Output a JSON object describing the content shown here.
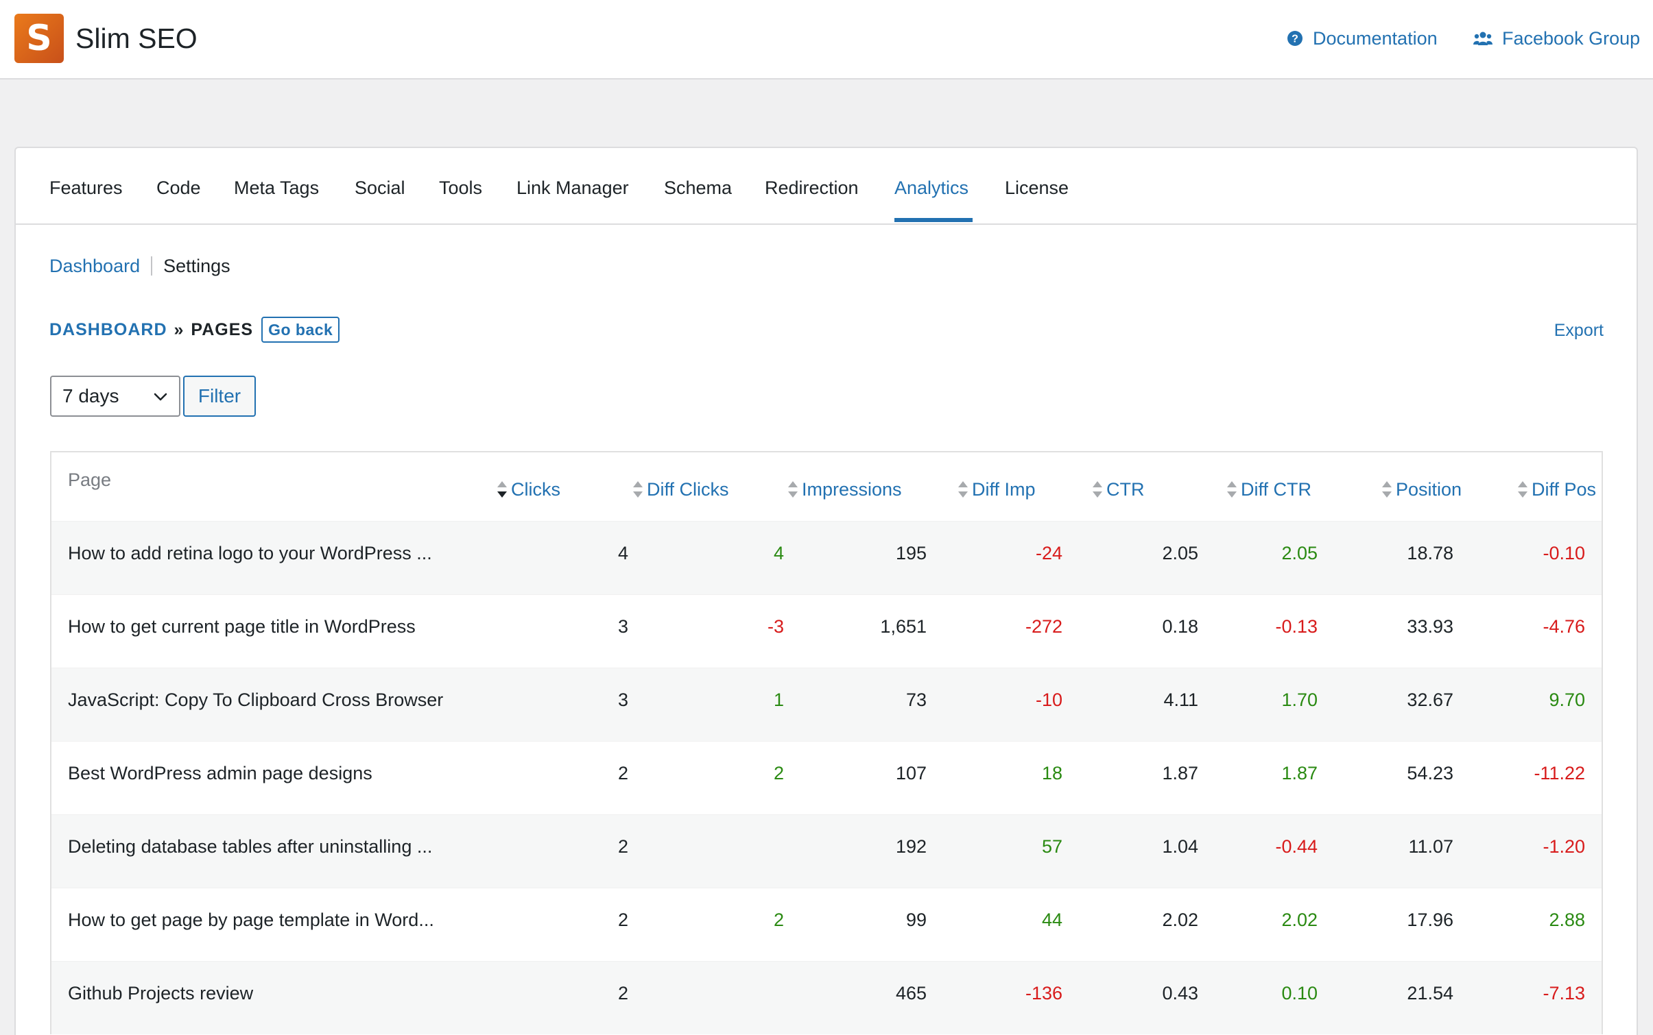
{
  "app": {
    "logo_letter": "S",
    "title": "Slim SEO"
  },
  "top_links": {
    "documentation": "Documentation",
    "facebook_group": "Facebook Group"
  },
  "tabs": [
    "Features",
    "Code",
    "Meta Tags",
    "Social",
    "Tools",
    "Link Manager",
    "Schema",
    "Redirection",
    "Analytics",
    "License"
  ],
  "active_tab": "Analytics",
  "subnav": {
    "dashboard": "Dashboard",
    "settings": "Settings"
  },
  "breadcrumb": {
    "dashboard": "DASHBOARD",
    "separator": "»",
    "current": "PAGES",
    "go_back": "Go back"
  },
  "export_label": "Export",
  "period_select": {
    "value": "7 days"
  },
  "filter_label": "Filter",
  "table": {
    "columns": [
      "Page",
      "Clicks",
      "Diff Clicks",
      "Impressions",
      "Diff Imp",
      "CTR",
      "Diff CTR",
      "Position",
      "Diff Pos"
    ],
    "sorted_column": "Clicks",
    "rows": [
      {
        "page": "How to add retina logo to your WordPress ...",
        "clicks": "4",
        "diff_clicks": "4",
        "impressions": "195",
        "diff_imp": "-24",
        "ctr": "2.05",
        "diff_ctr": "2.05",
        "position": "18.78",
        "diff_pos": "-0.10"
      },
      {
        "page": "How to get current page title in WordPress",
        "clicks": "3",
        "diff_clicks": "-3",
        "impressions": "1,651",
        "diff_imp": "-272",
        "ctr": "0.18",
        "diff_ctr": "-0.13",
        "position": "33.93",
        "diff_pos": "-4.76"
      },
      {
        "page": "JavaScript: Copy To Clipboard Cross Browser",
        "clicks": "3",
        "diff_clicks": "1",
        "impressions": "73",
        "diff_imp": "-10",
        "ctr": "4.11",
        "diff_ctr": "1.70",
        "position": "32.67",
        "diff_pos": "9.70"
      },
      {
        "page": "Best WordPress admin page designs",
        "clicks": "2",
        "diff_clicks": "2",
        "impressions": "107",
        "diff_imp": "18",
        "ctr": "1.87",
        "diff_ctr": "1.87",
        "position": "54.23",
        "diff_pos": "-11.22"
      },
      {
        "page": "Deleting database tables after uninstalling ...",
        "clicks": "2",
        "diff_clicks": "",
        "impressions": "192",
        "diff_imp": "57",
        "ctr": "1.04",
        "diff_ctr": "-0.44",
        "position": "11.07",
        "diff_pos": "-1.20"
      },
      {
        "page": "How to get page by page template in Word...",
        "clicks": "2",
        "diff_clicks": "2",
        "impressions": "99",
        "diff_imp": "44",
        "ctr": "2.02",
        "diff_ctr": "2.02",
        "position": "17.96",
        "diff_pos": "2.88"
      },
      {
        "page": "Github Projects review",
        "clicks": "2",
        "diff_clicks": "",
        "impressions": "465",
        "diff_imp": "-136",
        "ctr": "0.43",
        "diff_ctr": "0.10",
        "position": "21.54",
        "diff_pos": "-7.13"
      }
    ]
  },
  "colors": {
    "accent": "#2271b1",
    "positive": "#2a8a12",
    "negative": "#d81b1b",
    "logo_start": "#ea7a1b",
    "logo_end": "#c8501a"
  }
}
